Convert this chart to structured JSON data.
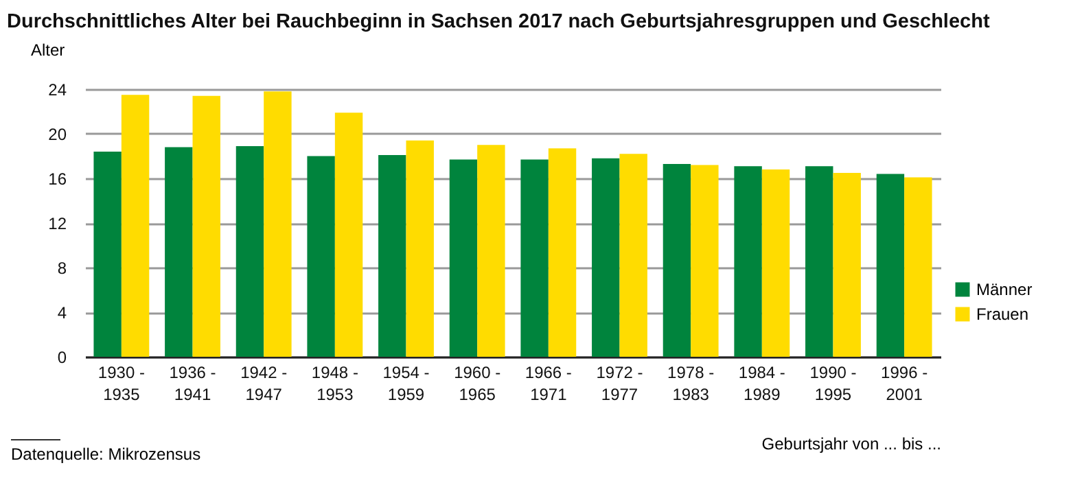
{
  "chart_data": {
    "type": "bar",
    "title": "Durchschnittliches Alter bei Rauchbeginn in Sachsen 2017 nach Geburtsjahresgruppen und Geschlecht",
    "ylabel": "Alter",
    "xlabel": "Geburtsjahr von ... bis  ...",
    "categories": [
      "1930 -\n1935",
      "1936 -\n1941",
      "1942 -\n1947",
      "1948 -\n1953",
      "1954 -\n1959",
      "1960 -\n1965",
      "1966 -\n1971",
      "1972 -\n1977",
      "1978 -\n1983",
      "1984 -\n1989",
      "1990 -\n1995",
      "1996 -\n2001"
    ],
    "series": [
      {
        "name": "Männer",
        "color": "#00843d",
        "values": [
          18.4,
          18.8,
          18.9,
          18.0,
          18.1,
          17.7,
          17.7,
          17.8,
          17.3,
          17.1,
          17.1,
          16.4
        ]
      },
      {
        "name": "Frauen",
        "color": "#ffdc00",
        "values": [
          23.5,
          23.4,
          23.8,
          21.9,
          19.4,
          19.0,
          18.7,
          18.2,
          17.2,
          16.8,
          16.5,
          16.1
        ]
      }
    ],
    "ylim": [
      0,
      24
    ],
    "yticks": [
      0,
      4,
      8,
      12,
      16,
      20,
      24
    ],
    "grid": "y",
    "legend": "bottom right",
    "annotations": [
      "Datenquelle: Mikrozensus"
    ]
  }
}
